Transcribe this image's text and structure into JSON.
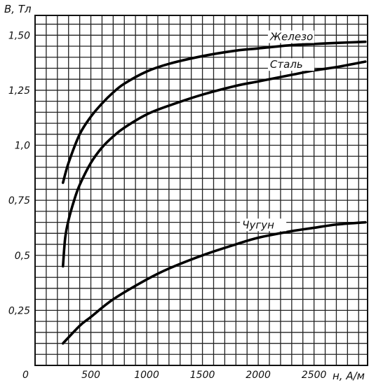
{
  "chart_data": {
    "type": "line",
    "ylabel": "B, Тл",
    "xlabel": "н, А/м",
    "origin_label": "0",
    "xlim": [
      0,
      2980
    ],
    "ylim": [
      0,
      1.59
    ],
    "grid": true,
    "x_ticks": [
      {
        "value": 500,
        "label": "500"
      },
      {
        "value": 1000,
        "label": "1000"
      },
      {
        "value": 1500,
        "label": "1500"
      },
      {
        "value": 2000,
        "label": "2000"
      },
      {
        "value": 2500,
        "label": "2500"
      }
    ],
    "y_ticks": [
      {
        "value": 0.25,
        "label": "0,25"
      },
      {
        "value": 0.5,
        "label": "0,5"
      },
      {
        "value": 0.75,
        "label": "0,75"
      },
      {
        "value": 1.0,
        "label": "1,0"
      },
      {
        "value": 1.25,
        "label": "1,25"
      },
      {
        "value": 1.5,
        "label": "1,50"
      }
    ],
    "series": [
      {
        "name": "Железо",
        "x": [
          250,
          300,
          400,
          500,
          600,
          700,
          800,
          1000,
          1200,
          1500,
          1800,
          2000,
          2300,
          2500,
          2700,
          2960
        ],
        "y": [
          0.83,
          0.92,
          1.05,
          1.13,
          1.19,
          1.24,
          1.28,
          1.335,
          1.37,
          1.405,
          1.43,
          1.44,
          1.455,
          1.46,
          1.465,
          1.47
        ]
      },
      {
        "name": "Сталь",
        "x": [
          250,
          270,
          300,
          350,
          400,
          500,
          600,
          700,
          800,
          1000,
          1200,
          1500,
          1800,
          2000,
          2300,
          2500,
          2700,
          2960
        ],
        "y": [
          0.45,
          0.58,
          0.66,
          0.75,
          0.82,
          0.92,
          0.99,
          1.04,
          1.08,
          1.14,
          1.18,
          1.23,
          1.27,
          1.29,
          1.32,
          1.34,
          1.355,
          1.38
        ]
      },
      {
        "name": "Чугун",
        "x": [
          250,
          400,
          500,
          700,
          1000,
          1200,
          1500,
          1800,
          2000,
          2300,
          2500,
          2700,
          2960
        ],
        "y": [
          0.1,
          0.18,
          0.22,
          0.3,
          0.39,
          0.44,
          0.5,
          0.55,
          0.58,
          0.61,
          0.625,
          0.64,
          0.65
        ]
      }
    ]
  }
}
